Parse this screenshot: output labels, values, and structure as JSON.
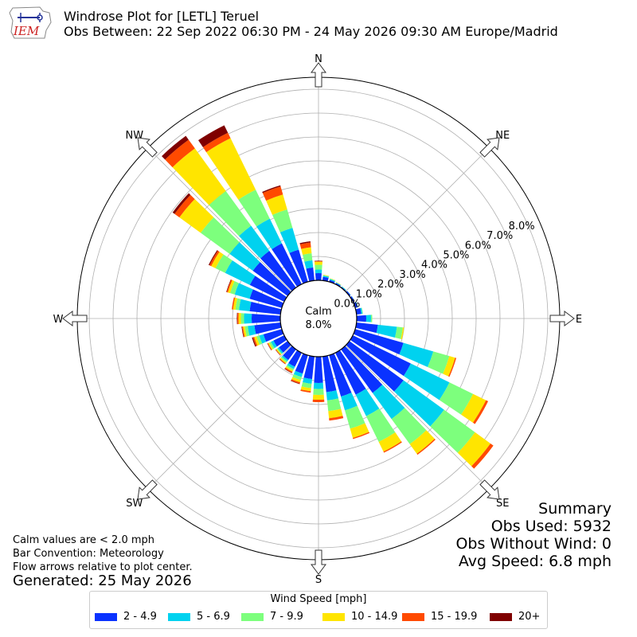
{
  "header": {
    "title": "Windrose Plot for [LETL] Teruel",
    "subtitle": "Obs Between: 22 Sep 2022 06:30 PM - 24 May 2026 09:30 AM Europe/Madrid",
    "logo_text": "IEM"
  },
  "notes": {
    "calm_note": "Calm values are < 2.0 mph",
    "convention": "Bar Convention: Meteorology",
    "arrows": "Flow arrows relative to plot center.",
    "generated": "Generated: 25 May 2026"
  },
  "summary": {
    "title": "Summary",
    "obs_used": "Obs Used: 5932",
    "obs_without_wind": "Obs Without Wind: 0",
    "avg_speed": "Avg Speed: 6.8 mph"
  },
  "legend": {
    "title": "Wind Speed [mph]"
  },
  "chart_data": {
    "type": "windrose",
    "calm_label": "Calm",
    "calm_value": "8.0%",
    "cardinal_labels": [
      "N",
      "NE",
      "E",
      "SE",
      "S",
      "SW",
      "W",
      "NW"
    ],
    "radial_ticks": [
      "0.0%",
      "1.0%",
      "2.0%",
      "3.0%",
      "4.0%",
      "5.0%",
      "6.0%",
      "7.0%",
      "8.0%"
    ],
    "rlim": [
      0,
      8.5
    ],
    "bins": [
      {
        "label": "2 - 4.9",
        "color": "#0a32ff"
      },
      {
        "label": "5 - 6.9",
        "color": "#00d2ef"
      },
      {
        "label": "7 - 9.9",
        "color": "#7dff7d"
      },
      {
        "label": "10 - 14.9",
        "color": "#ffe500"
      },
      {
        "label": "15 - 19.9",
        "color": "#ff4a00"
      },
      {
        "label": "20+",
        "color": "#7f0000"
      }
    ],
    "directions": [
      0,
      10,
      20,
      30,
      40,
      50,
      60,
      70,
      80,
      90,
      100,
      110,
      120,
      130,
      140,
      150,
      160,
      170,
      180,
      190,
      200,
      210,
      220,
      230,
      240,
      250,
      260,
      270,
      280,
      290,
      300,
      310,
      320,
      330,
      340,
      350
    ],
    "cumulative_percent": [
      [
        0.3,
        0.45,
        0.65,
        0.78,
        0.8,
        0.82
      ],
      [
        0.15,
        0.2,
        0.22,
        0.24,
        0.24,
        0.24
      ],
      [
        0.08,
        0.12,
        0.14,
        0.15,
        0.15,
        0.15
      ],
      [
        0.06,
        0.08,
        0.09,
        0.1,
        0.1,
        0.1
      ],
      [
        0.04,
        0.06,
        0.07,
        0.07,
        0.07,
        0.07
      ],
      [
        0.06,
        0.07,
        0.07,
        0.07,
        0.07,
        0.07
      ],
      [
        0.07,
        0.08,
        0.08,
        0.08,
        0.08,
        0.08
      ],
      [
        0.1,
        0.12,
        0.12,
        0.12,
        0.12,
        0.12
      ],
      [
        0.2,
        0.25,
        0.27,
        0.27,
        0.27,
        0.27
      ],
      [
        0.4,
        0.6,
        0.65,
        0.65,
        0.65,
        0.65
      ],
      [
        0.9,
        1.7,
        1.95,
        2.0,
        2.0,
        2.0
      ],
      [
        2.1,
        3.4,
        4.1,
        4.35,
        4.4,
        4.4
      ],
      [
        2.7,
        4.5,
        5.6,
        6.2,
        6.3,
        6.3
      ],
      [
        2.8,
        4.9,
        6.5,
        7.3,
        7.45,
        7.45
      ],
      [
        2.25,
        3.6,
        4.9,
        5.4,
        5.45,
        5.45
      ],
      [
        1.95,
        2.95,
        4.15,
        4.6,
        4.65,
        4.65
      ],
      [
        1.8,
        2.4,
        3.2,
        3.6,
        3.65,
        3.65
      ],
      [
        1.5,
        1.85,
        2.3,
        2.6,
        2.7,
        2.7
      ],
      [
        1.1,
        1.35,
        1.6,
        1.8,
        1.9,
        1.9
      ],
      [
        0.95,
        1.15,
        1.33,
        1.46,
        1.52,
        1.52
      ],
      [
        0.8,
        0.95,
        1.08,
        1.18,
        1.24,
        1.26
      ],
      [
        0.65,
        0.75,
        0.82,
        0.88,
        0.93,
        0.95
      ],
      [
        0.55,
        0.62,
        0.68,
        0.73,
        0.76,
        0.77
      ],
      [
        0.45,
        0.52,
        0.56,
        0.6,
        0.62,
        0.63
      ],
      [
        0.5,
        0.62,
        0.7,
        0.75,
        0.78,
        0.79
      ],
      [
        0.8,
        0.98,
        1.1,
        1.2,
        1.26,
        1.3
      ],
      [
        1.1,
        1.38,
        1.5,
        1.58,
        1.62,
        1.64
      ],
      [
        1.2,
        1.52,
        1.65,
        1.75,
        1.8,
        1.82
      ],
      [
        1.3,
        1.75,
        1.9,
        2.0,
        2.05,
        2.05
      ],
      [
        1.4,
        2.05,
        2.25,
        2.35,
        2.4,
        2.42
      ],
      [
        1.6,
        2.75,
        3.2,
        3.4,
        3.48,
        3.52
      ],
      [
        1.8,
        3.0,
        4.5,
        5.6,
        5.85,
        5.95
      ],
      [
        1.9,
        3.2,
        5.0,
        7.2,
        7.65,
        7.85
      ],
      [
        1.9,
        3.05,
        4.4,
        6.8,
        7.05,
        7.4
      ],
      [
        1.4,
        2.35,
        3.15,
        3.8,
        4.15,
        4.2
      ],
      [
        0.55,
        0.85,
        1.15,
        1.4,
        1.6,
        1.65
      ]
    ]
  }
}
